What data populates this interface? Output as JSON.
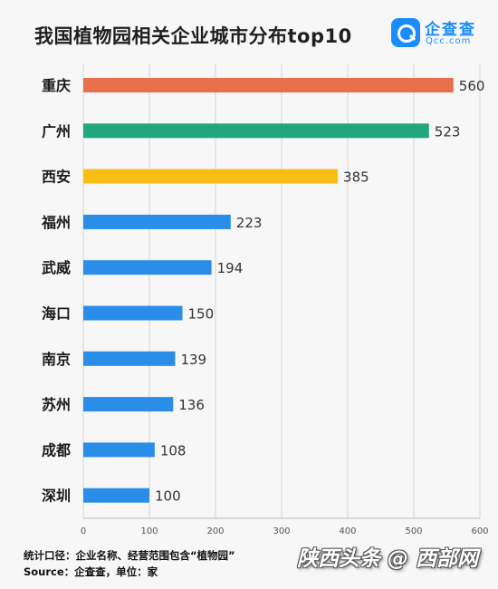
{
  "colors": {
    "first": "#e8704a",
    "second": "#22a67e",
    "third": "#f9be13",
    "other": "#2a8ee8"
  },
  "logo": {
    "icon": "qcc-magnifier-icon",
    "name_cn": "企查查",
    "name_en": "Qcc.com"
  },
  "footer": {
    "line1": "统计口径：企业名称、经营范围包含“植物园”",
    "line2": "Source：企查查，单位：家"
  },
  "brand": "陕西头条 @ 西部网",
  "chart_data": {
    "type": "bar",
    "orientation": "horizontal",
    "title": "我国植物园相关企业城市分布top10",
    "categories": [
      "重庆",
      "广州",
      "西安",
      "福州",
      "武威",
      "海口",
      "南京",
      "苏州",
      "成都",
      "深圳"
    ],
    "values": [
      560,
      523,
      385,
      223,
      194,
      150,
      139,
      136,
      108,
      100
    ],
    "xlim": [
      0,
      600
    ],
    "xticks": [
      0,
      100,
      200,
      300,
      400,
      500,
      600
    ],
    "grid": true,
    "legend": "none"
  }
}
